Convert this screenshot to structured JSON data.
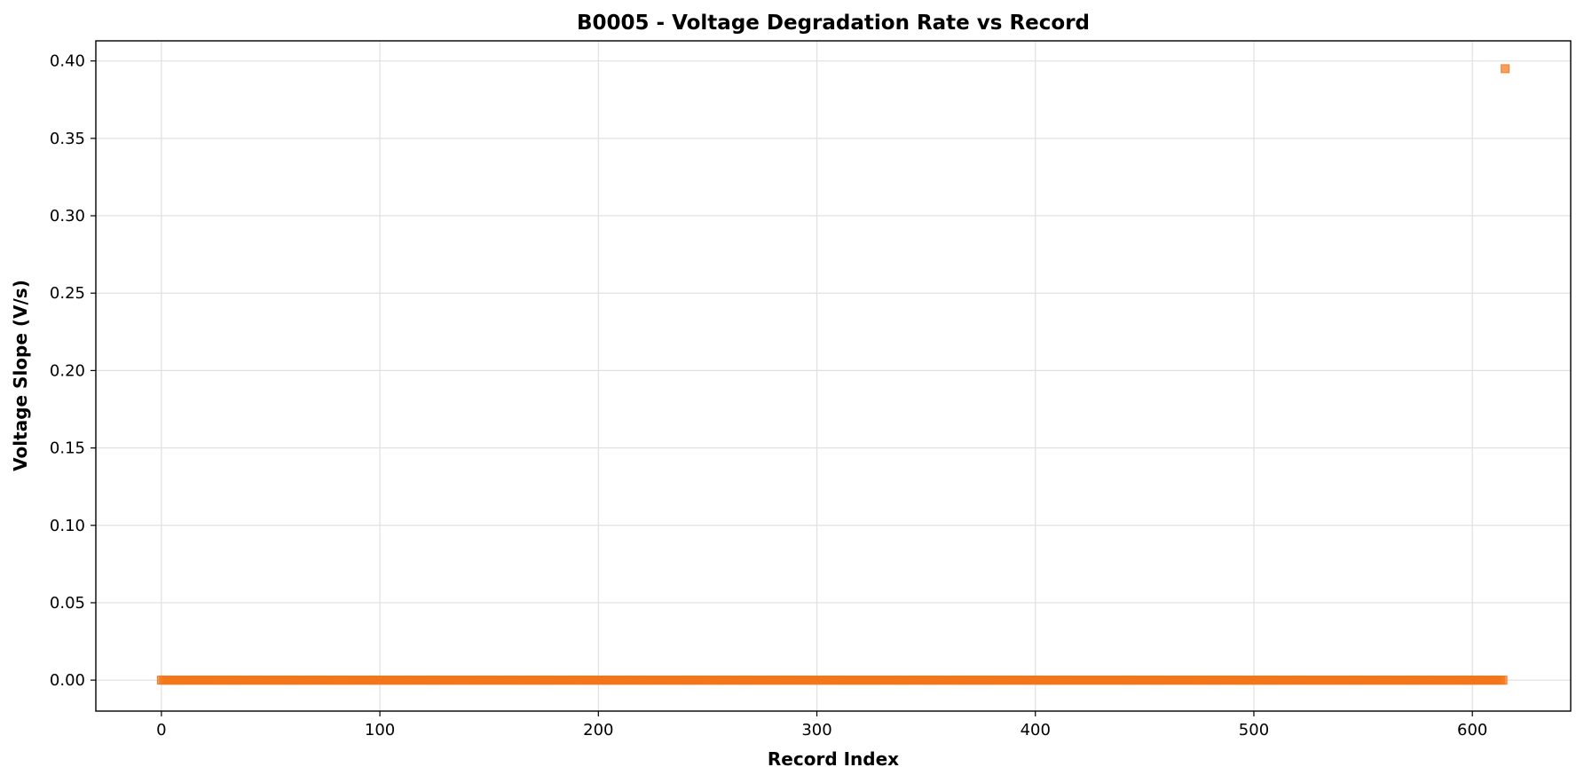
{
  "chart_data": {
    "type": "scatter",
    "title": "B0005 - Voltage Degradation Rate vs Record",
    "xlabel": "Record Index",
    "ylabel": "Voltage Slope (V/s)",
    "xlim": [
      -30,
      645
    ],
    "ylim": [
      -0.02,
      0.413
    ],
    "xticks": [
      0,
      100,
      200,
      300,
      400,
      500,
      600
    ],
    "xtick_labels": [
      "0",
      "100",
      "200",
      "300",
      "400",
      "500",
      "600"
    ],
    "yticks": [
      0.0,
      0.05,
      0.1,
      0.15,
      0.2,
      0.25,
      0.3,
      0.35,
      0.4
    ],
    "ytick_labels": [
      "0.00",
      "0.05",
      "0.10",
      "0.15",
      "0.20",
      "0.25",
      "0.30",
      "0.35",
      "0.40"
    ],
    "grid": true,
    "marker": "square",
    "color": "#f5761a",
    "series": [
      {
        "name": "",
        "x_start": 0,
        "x_end": 614,
        "x_step": 1,
        "y_constant": 0.0,
        "outliers": [
          {
            "x": 615,
            "y": 0.395
          }
        ]
      }
    ]
  }
}
